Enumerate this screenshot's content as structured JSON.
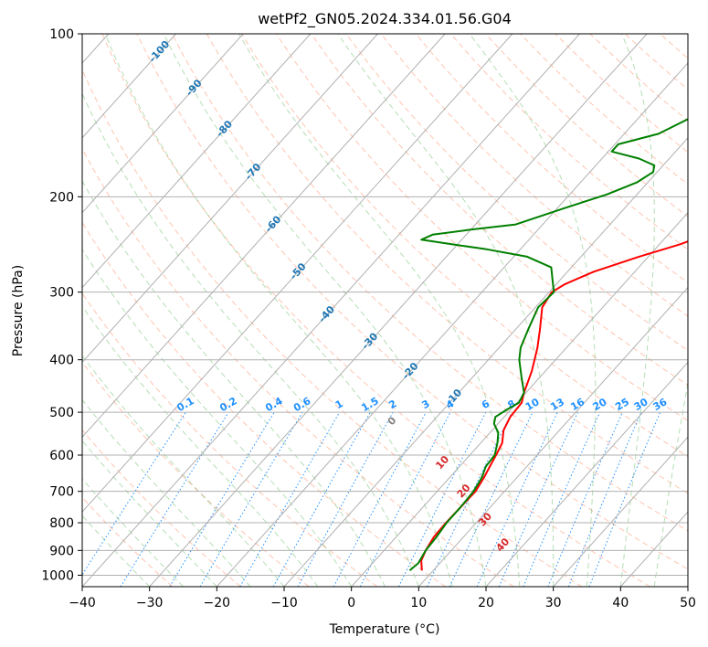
{
  "chart_data": {
    "type": "line",
    "title": "wetPf2_GN05.2024.334.01.56.G04",
    "xlabel": "Temperature (°C)",
    "ylabel": "Pressure (hPa)",
    "xlim": [
      -40,
      50
    ],
    "ylim": [
      1050,
      100
    ],
    "y_scale": "log",
    "grid": true,
    "x_ticks": [
      "−40",
      "−30",
      "−20",
      "−10",
      "0",
      "10",
      "20",
      "30",
      "40",
      "50"
    ],
    "y_ticks": [
      "100",
      "200",
      "300",
      "400",
      "500",
      "600",
      "700",
      "800",
      "900",
      "1000"
    ],
    "x_tick_values": [
      -40,
      -30,
      -20,
      -10,
      0,
      10,
      20,
      30,
      40,
      50
    ],
    "y_tick_values": [
      100,
      200,
      300,
      400,
      500,
      600,
      700,
      800,
      900,
      1000
    ],
    "series": [
      {
        "color": "#ff0000",
        "points": [
          [
            8.3,
            980
          ],
          [
            6.9,
            940
          ],
          [
            6.2,
            900
          ],
          [
            5.6,
            850
          ],
          [
            5.5,
            800
          ],
          [
            5.6,
            750
          ],
          [
            5.7,
            700
          ],
          [
            5.1,
            660
          ],
          [
            4.5,
            630
          ],
          [
            3.9,
            600
          ],
          [
            3.2,
            570
          ],
          [
            1.7,
            540
          ],
          [
            0.9,
            510
          ],
          [
            0.7,
            480
          ],
          [
            -0.3,
            460
          ],
          [
            -2.0,
            420
          ],
          [
            -4.3,
            380
          ],
          [
            -6.5,
            350
          ],
          [
            -9.0,
            320
          ],
          [
            -9.6,
            300
          ],
          [
            -8.7,
            290
          ],
          [
            -6.1,
            275
          ],
          [
            -1.4,
            258
          ],
          [
            3.0,
            245
          ],
          [
            7.0,
            230
          ],
          [
            11.5,
            210
          ],
          [
            15.9,
            190
          ],
          [
            20.5,
            172
          ],
          [
            24.8,
            160
          ],
          [
            29.8,
            150
          ],
          [
            30.9,
            140
          ],
          [
            29.7,
            135
          ],
          [
            30.0,
            130
          ],
          [
            32.5,
            125
          ],
          [
            34.5,
            120
          ],
          [
            37.5,
            115
          ],
          [
            39.5,
            110
          ],
          [
            41.0,
            105
          ],
          [
            42.1,
            100
          ]
        ]
      },
      {
        "color": "#008000",
        "points": [
          [
            6.5,
            980
          ],
          [
            6.8,
            950
          ],
          [
            6.2,
            900
          ],
          [
            6.0,
            850
          ],
          [
            5.6,
            800
          ],
          [
            5.6,
            750
          ],
          [
            5.4,
            700
          ],
          [
            4.8,
            660
          ],
          [
            3.9,
            630
          ],
          [
            3.7,
            600
          ],
          [
            2.5,
            570
          ],
          [
            1.2,
            545
          ],
          [
            -0.6,
            525
          ],
          [
            -1.3,
            510
          ],
          [
            -0.6,
            495
          ],
          [
            0.3,
            480
          ],
          [
            -0.3,
            460
          ],
          [
            -2.8,
            430
          ],
          [
            -5.4,
            400
          ],
          [
            -6.8,
            380
          ],
          [
            -8.2,
            350
          ],
          [
            -9.6,
            320
          ],
          [
            -9.3,
            300
          ],
          [
            -10.5,
            290
          ],
          [
            -13.0,
            270
          ],
          [
            -18.0,
            258
          ],
          [
            -25.0,
            250
          ],
          [
            -30.5,
            245
          ],
          [
            -36.0,
            240
          ],
          [
            -35.0,
            235
          ],
          [
            -30.0,
            230
          ],
          [
            -24.0,
            225
          ],
          [
            -19.0,
            210
          ],
          [
            -14.5,
            198
          ],
          [
            -11.6,
            188
          ],
          [
            -10.6,
            180
          ],
          [
            -11.3,
            175
          ],
          [
            -14.5,
            170
          ],
          [
            -19.5,
            165
          ],
          [
            -19.5,
            160
          ],
          [
            -14.9,
            153
          ],
          [
            -11.5,
            140
          ],
          [
            -10.9,
            130
          ],
          [
            -10.1,
            120
          ],
          [
            -8.6,
            112
          ],
          [
            -5.4,
            107
          ],
          [
            -3.4,
            100
          ]
        ]
      }
    ],
    "isotherms": [
      -100,
      -90,
      -80,
      -70,
      -60,
      -50,
      -40,
      -30,
      -20,
      -10,
      0,
      10,
      20,
      30,
      40,
      50
    ],
    "isotherm_labels": [
      "-100",
      "-90",
      "-80",
      "-70",
      "-60",
      "-50",
      "-40",
      "-30",
      "-20",
      "-10"
    ],
    "mixing_ratio_labels": [
      "0.1",
      "0.2",
      "0.4",
      "0.6",
      "1",
      "1.5",
      "2",
      "3",
      "4",
      "6",
      "8",
      "10",
      "13",
      "16",
      "20",
      "25",
      "30",
      "36"
    ],
    "warm_labels": [
      "0",
      "10",
      "20",
      "30",
      "40"
    ],
    "colors": {
      "temperature": "#ff0000",
      "dewpoint": "#008000",
      "isotherm_label": "#1f77b4",
      "mixing_ratio_label": "#1e90ff",
      "warm_label": "#d62728",
      "zero_label": "#808080",
      "grid": "#b0b0b0",
      "dry_adiabat": "#ff7f50",
      "moist_adiabat": "#2ca02c"
    }
  }
}
